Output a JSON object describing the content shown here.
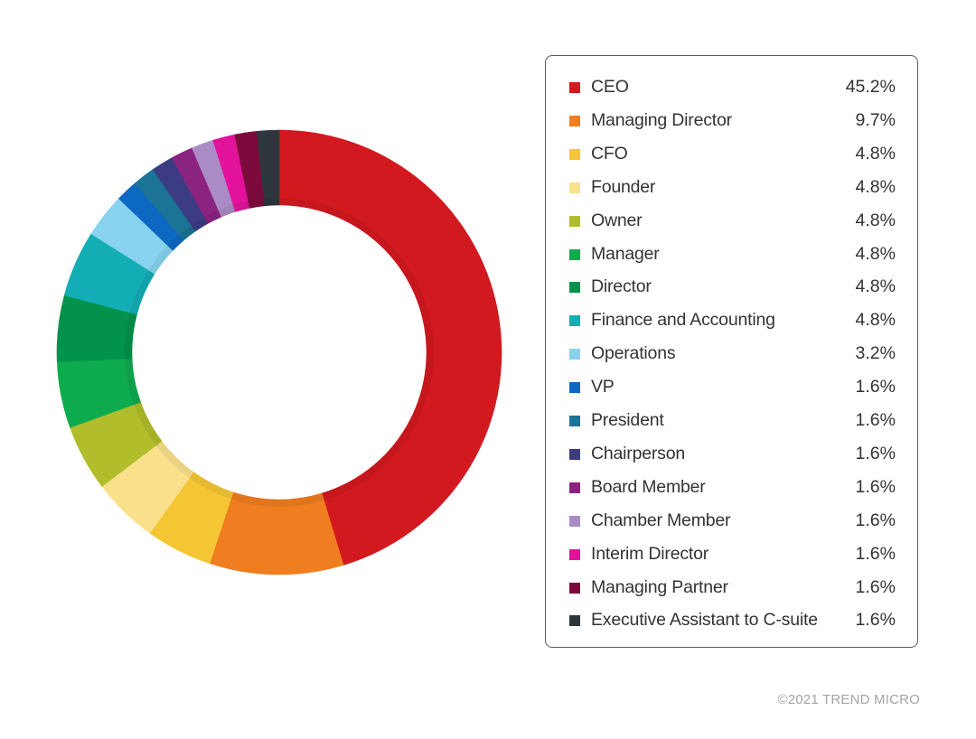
{
  "chart_data": {
    "type": "pie",
    "variant": "donut",
    "categories": [
      "CEO",
      "Managing Director",
      "CFO",
      "Founder",
      "Owner",
      "Manager",
      "Director",
      "Finance and Accounting",
      "Operations",
      "VP",
      "President",
      "Chairperson",
      "Board Member",
      "Chamber Member",
      "Interim Director",
      "Managing Partner",
      "Executive Assistant to C-suite"
    ],
    "values": [
      45.2,
      9.7,
      4.8,
      4.8,
      4.8,
      4.8,
      4.8,
      4.8,
      3.2,
      1.6,
      1.6,
      1.6,
      1.6,
      1.6,
      1.6,
      1.6,
      1.6
    ],
    "value_labels": [
      "45.2%",
      "9.7%",
      "4.8%",
      "4.8%",
      "4.8%",
      "4.8%",
      "4.8%",
      "4.8%",
      "3.2%",
      "1.6%",
      "1.6%",
      "1.6%",
      "1.6%",
      "1.6%",
      "1.6%",
      "1.6%",
      "1.6%"
    ],
    "colors": [
      "#d2191f",
      "#f07d1f",
      "#f4c634",
      "#fbe08c",
      "#b1bd2b",
      "#0eab4e",
      "#03924b",
      "#13adb5",
      "#87d3f0",
      "#0c68c1",
      "#1b7495",
      "#3c3c82",
      "#8b2381",
      "#ab8bc5",
      "#e2139a",
      "#7d0a3d",
      "#2e363d"
    ],
    "legend_position": "right",
    "start_angle": "top",
    "direction": "clockwise"
  },
  "footer": {
    "copyright": "©2021 TREND MICRO"
  }
}
